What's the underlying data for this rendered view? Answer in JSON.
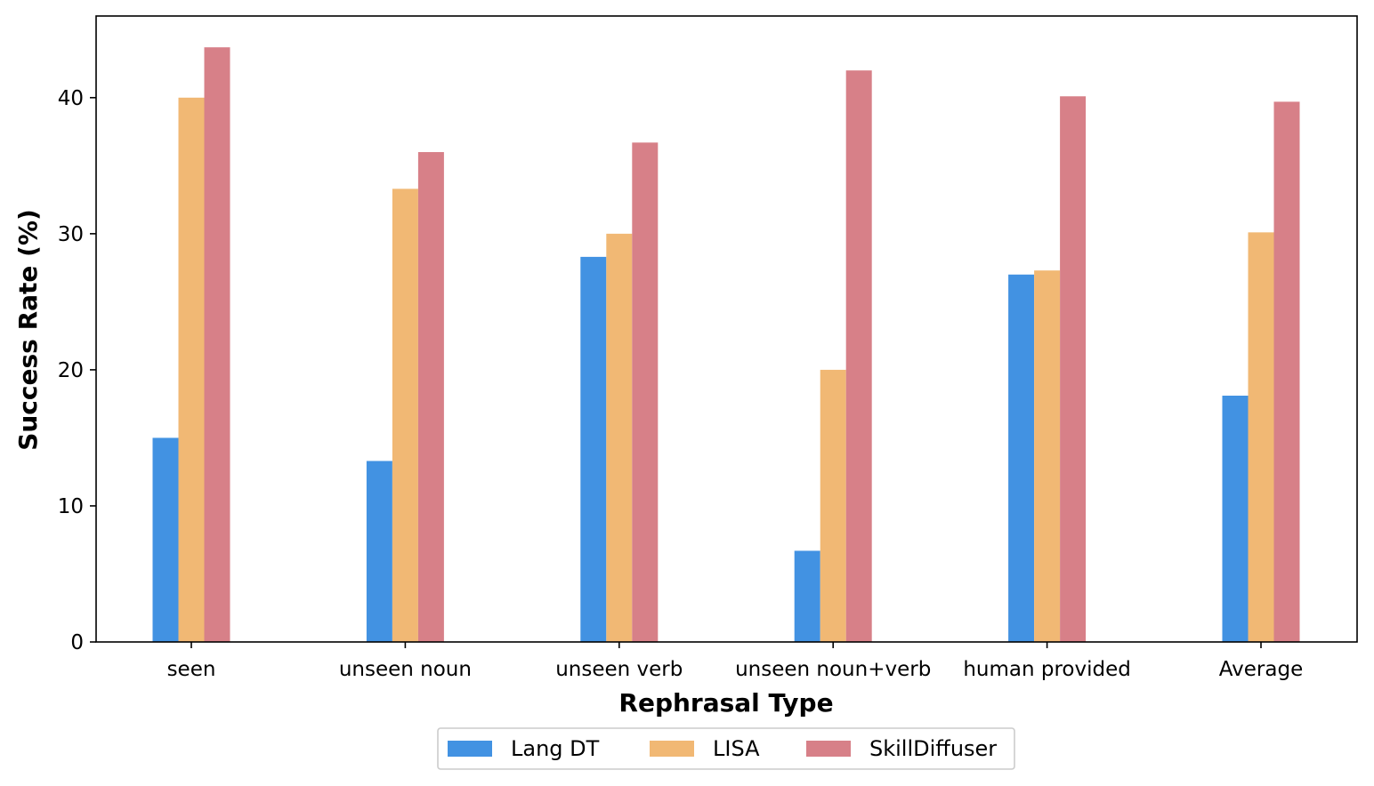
{
  "chart_data": {
    "type": "bar",
    "xlabel": "Rephrasal Type",
    "ylabel": "Success Rate (%)",
    "ylim": [
      0,
      46
    ],
    "yticks": [
      0,
      10,
      20,
      30,
      40
    ],
    "categories": [
      "seen",
      "unseen noun",
      "unseen verb",
      "unseen noun+verb",
      "human provided",
      "Average"
    ],
    "series": [
      {
        "name": "Lang DT",
        "color": "#4292e2",
        "values": [
          15.0,
          13.3,
          28.3,
          6.7,
          27.0,
          18.1
        ]
      },
      {
        "name": "LISA",
        "color": "#f1b874",
        "values": [
          40.0,
          33.3,
          30.0,
          20.0,
          27.3,
          30.1
        ]
      },
      {
        "name": "SkillDiffuser",
        "color": "#d78088",
        "values": [
          43.7,
          36.0,
          36.7,
          42.0,
          40.1,
          39.7
        ]
      }
    ],
    "grid": false,
    "legend_position": "bottom-center"
  }
}
